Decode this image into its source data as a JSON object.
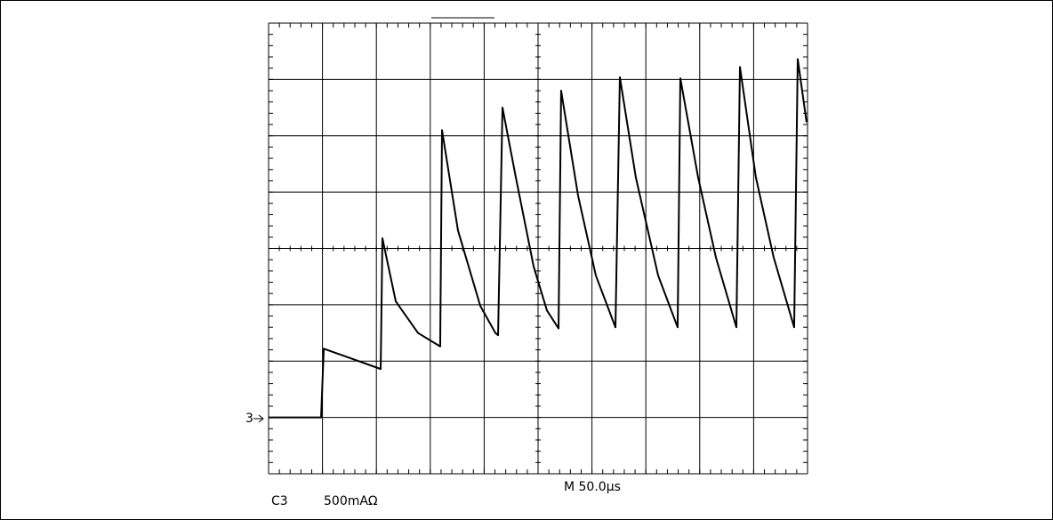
{
  "chart_data": {
    "type": "line",
    "channel_marker": "3",
    "channel": "C3",
    "scale": "500mAΩ",
    "timebase": "M 50.0µs",
    "x": [
      0,
      48.7,
      51.2,
      104,
      105.6,
      118,
      138.6,
      159.2,
      160.9,
      175.7,
      196.4,
      210.4,
      212.9,
      217,
      229.4,
      245.9,
      258.2,
      269,
      271.4,
      287.1,
      303.6,
      321.8,
      325.9,
      340.7,
      361.4,
      379.5,
      382,
      398.5,
      415,
      434,
      437.3,
      452.1,
      468.6,
      487.6,
      490.9,
      499.1
    ],
    "values": [
      0,
      0,
      610,
      430,
      1590,
      1030,
      750,
      630,
      2550,
      1660,
      990,
      750,
      730,
      2750,
      2130,
      1340,
      950,
      790,
      2900,
      1970,
      1260,
      800,
      3020,
      2130,
      1260,
      800,
      3010,
      2130,
      1420,
      800,
      3110,
      2130,
      1420,
      800,
      3180,
      2620
    ],
    "color": "#000000",
    "xlim": [
      0,
      500
    ],
    "xticks": [
      0,
      50,
      100,
      150,
      200,
      250,
      300,
      350,
      400,
      450,
      500
    ],
    "ylim": [
      -500,
      3500
    ],
    "yticks": [
      -500,
      0,
      500,
      1000,
      1500,
      2000,
      2500,
      3000,
      3500
    ],
    "grid": true
  }
}
